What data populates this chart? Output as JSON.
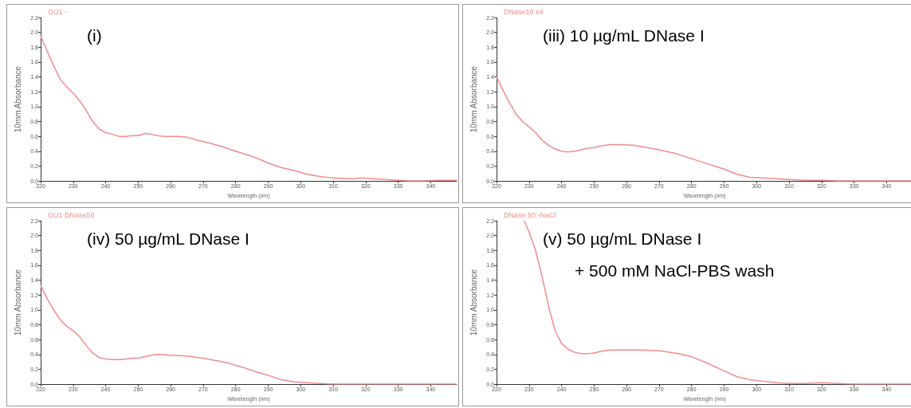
{
  "chart_data": [
    {
      "type": "line",
      "xlabel": "Wavelength (nm)",
      "ylabel": "10mm Absorbance",
      "annotations": [
        "(i)"
      ],
      "legend": "top left",
      "grid": false,
      "marker": "none",
      "line_style": "solid",
      "xlim": [
        220,
        348
      ],
      "xticks": [
        220,
        230,
        240,
        250,
        260,
        270,
        280,
        290,
        300,
        310,
        320,
        330,
        340
      ],
      "ylim": [
        0,
        2.2
      ],
      "yticks": [
        {
          "value": 0,
          "label": "0.0"
        },
        0.2,
        0.4,
        0.6,
        0.8,
        {
          "value": 1,
          "label": "1.0"
        },
        1.2,
        1.4,
        1.6,
        1.8,
        {
          "value": 2,
          "label": "2.0"
        },
        2.2
      ],
      "series": [
        {
          "name": "GU1 -",
          "color": "#f08c8c",
          "x": [
            220,
            222,
            224,
            226,
            228,
            230,
            232,
            234,
            236,
            238,
            240,
            242,
            244,
            246,
            248,
            250,
            252,
            254,
            256,
            258,
            262,
            265,
            268,
            272,
            276,
            280,
            285,
            288,
            290,
            294,
            298,
            302,
            306,
            310,
            314,
            316,
            318,
            322,
            326,
            330,
            334,
            338,
            342,
            348
          ],
          "values": [
            1.95,
            1.75,
            1.55,
            1.37,
            1.27,
            1.18,
            1.08,
            0.95,
            0.8,
            0.7,
            0.65,
            0.63,
            0.6,
            0.6,
            0.61,
            0.61,
            0.64,
            0.63,
            0.61,
            0.6,
            0.6,
            0.59,
            0.55,
            0.51,
            0.46,
            0.4,
            0.33,
            0.28,
            0.24,
            0.18,
            0.14,
            0.09,
            0.06,
            0.04,
            0.03,
            0.03,
            0.04,
            0.03,
            0.02,
            0.01,
            0,
            0,
            0.01,
            0.01
          ]
        }
      ]
    },
    {
      "type": "line",
      "xlabel": "Wavelength (nm)",
      "ylabel": "10mm Absorbance",
      "annotations": [
        "(iii) 10 µg/mL DNase I"
      ],
      "legend": "top left",
      "grid": false,
      "marker": "none",
      "line_style": "solid",
      "xlim": [
        220,
        348
      ],
      "xticks": [
        220,
        230,
        240,
        250,
        260,
        270,
        280,
        290,
        300,
        310,
        320,
        330,
        340
      ],
      "ylim": [
        0,
        2.2
      ],
      "yticks": [
        {
          "value": 0,
          "label": "0.0"
        },
        0.2,
        0.4,
        0.6,
        0.8,
        {
          "value": 1,
          "label": "1.0"
        },
        1.2,
        1.4,
        1.6,
        1.8,
        {
          "value": 2,
          "label": "2.0"
        },
        2.2
      ],
      "series": [
        {
          "name": "DNase10 x4",
          "color": "#f08c8c",
          "x": [
            220,
            222,
            224,
            226,
            228,
            230,
            232,
            234,
            236,
            238,
            240,
            242,
            244,
            246,
            248,
            250,
            252,
            255,
            258,
            262,
            265,
            270,
            275,
            280,
            285,
            290,
            294,
            298,
            302,
            306,
            310,
            315,
            320,
            325,
            330,
            340,
            348
          ],
          "values": [
            1.4,
            1.22,
            1.05,
            0.9,
            0.8,
            0.73,
            0.65,
            0.55,
            0.48,
            0.43,
            0.4,
            0.39,
            0.4,
            0.42,
            0.44,
            0.45,
            0.47,
            0.49,
            0.49,
            0.48,
            0.46,
            0.42,
            0.37,
            0.3,
            0.23,
            0.16,
            0.09,
            0.05,
            0.04,
            0.03,
            0.02,
            0.01,
            0.01,
            0,
            0,
            0,
            0
          ]
        }
      ]
    },
    {
      "type": "line",
      "xlabel": "Wavelength (nm)",
      "ylabel": "10mm Absorbance",
      "annotations": [
        "(iv) 50 µg/mL DNase I"
      ],
      "legend": "top left",
      "grid": false,
      "marker": "none",
      "line_style": "solid",
      "xlim": [
        220,
        348
      ],
      "xticks": [
        220,
        230,
        240,
        250,
        260,
        270,
        280,
        290,
        300,
        310,
        320,
        330,
        340
      ],
      "ylim": [
        0,
        2.2
      ],
      "yticks": [
        {
          "value": 0,
          "label": "0.0"
        },
        0.2,
        0.4,
        0.6,
        0.8,
        {
          "value": 1,
          "label": "1.0"
        },
        1.2,
        1.4,
        1.6,
        1.8,
        {
          "value": 2,
          "label": "2.0"
        },
        2.2
      ],
      "series": [
        {
          "name": "GU1 DNase50",
          "color": "#f08c8c",
          "x": [
            220,
            222,
            224,
            226,
            228,
            230,
            232,
            234,
            236,
            238,
            240,
            242,
            245,
            248,
            250,
            252,
            254,
            256,
            260,
            265,
            270,
            275,
            278,
            282,
            286,
            290,
            294,
            298,
            302,
            306,
            310,
            320,
            330,
            340,
            348
          ],
          "values": [
            1.33,
            1.15,
            1,
            0.87,
            0.78,
            0.72,
            0.64,
            0.52,
            0.42,
            0.36,
            0.34,
            0.33,
            0.33,
            0.35,
            0.35,
            0.37,
            0.39,
            0.4,
            0.39,
            0.38,
            0.35,
            0.31,
            0.28,
            0.23,
            0.17,
            0.12,
            0.06,
            0.03,
            0.02,
            0.01,
            0,
            0,
            0,
            0,
            0
          ]
        }
      ]
    },
    {
      "type": "line",
      "xlabel": "Wavelength (nm)",
      "ylabel": "10mm Absorbance",
      "annotations": [
        "(v) 50 µg/mL DNase I",
        "+ 500 mM NaCl-PBS wash"
      ],
      "legend": "top left",
      "grid": false,
      "marker": "none",
      "line_style": "solid",
      "xlim": [
        220,
        348
      ],
      "xticks": [
        220,
        230,
        240,
        250,
        260,
        270,
        280,
        290,
        300,
        310,
        320,
        330,
        340
      ],
      "ylim": [
        0,
        2.2
      ],
      "yticks": [
        {
          "value": 0,
          "label": "0.0"
        },
        0.2,
        0.4,
        0.6,
        0.8,
        {
          "value": 1,
          "label": "1.0"
        },
        1.2,
        1.4,
        1.6,
        1.8,
        {
          "value": 2,
          "label": "2.0"
        },
        2.2
      ],
      "series": [
        {
          "name": "DNase 50 -NaCl",
          "color": "#f08c8c",
          "x": [
            228.5,
            230,
            232,
            234,
            236,
            238,
            240,
            242,
            244,
            246,
            248,
            250,
            252,
            255,
            260,
            265,
            270,
            275,
            280,
            285,
            290,
            294,
            298,
            302,
            306,
            310,
            315,
            320,
            325,
            330,
            340,
            348
          ],
          "values": [
            2.2,
            2.05,
            1.8,
            1.45,
            1.05,
            0.72,
            0.55,
            0.47,
            0.43,
            0.41,
            0.41,
            0.42,
            0.44,
            0.46,
            0.46,
            0.46,
            0.45,
            0.42,
            0.37,
            0.28,
            0.18,
            0.1,
            0.06,
            0.04,
            0.02,
            0.01,
            0.01,
            0.02,
            0.01,
            0,
            0,
            0
          ]
        }
      ]
    }
  ]
}
